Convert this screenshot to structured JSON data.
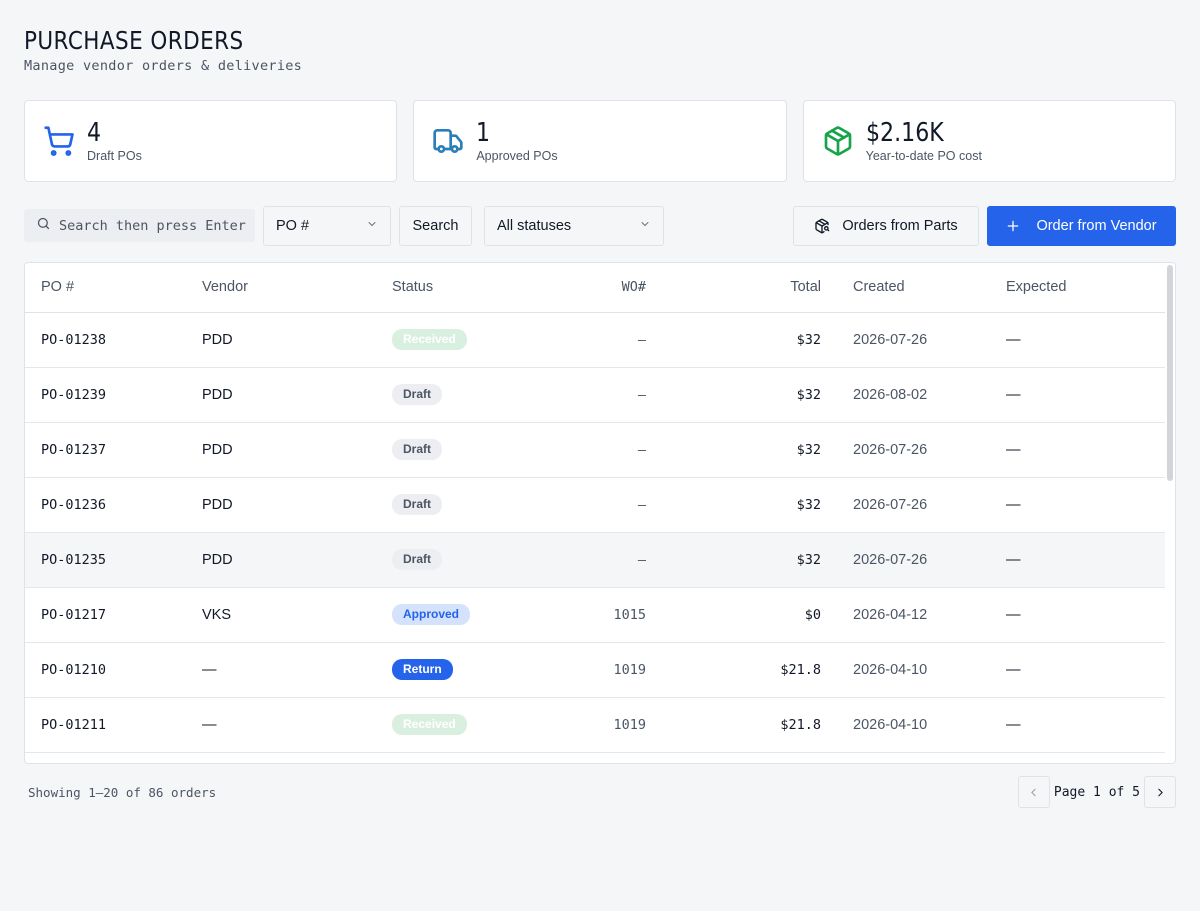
{
  "header": {
    "title": "PURCHASE ORDERS",
    "subtitle": "Manage vendor orders & deliveries"
  },
  "stats": [
    {
      "value": "4",
      "label": "Draft POs",
      "icon": "cart-icon",
      "color": "#2563eb"
    },
    {
      "value": "1",
      "label": "Approved POs",
      "icon": "truck-icon",
      "color": "#2b7fb8"
    },
    {
      "value": "$2.16K",
      "label": "Year-to-date PO cost",
      "icon": "box-icon",
      "color": "#16a34a"
    }
  ],
  "toolbar": {
    "search_placeholder": "Search then press Enter",
    "field_select": "PO #",
    "search_button": "Search",
    "status_select": "All statuses",
    "orders_from_parts": "Orders from Parts",
    "order_from_vendor": "Order from Vendor"
  },
  "table": {
    "columns": {
      "po": "PO #",
      "vendor": "Vendor",
      "status": "Status",
      "wo": "WO#",
      "total": "Total",
      "created": "Created",
      "expected": "Expected"
    },
    "rows": [
      {
        "po": "PO-01238",
        "vendor": "PDD",
        "status": "Received",
        "status_key": "received",
        "wo": "–",
        "total": "$32",
        "created": "2026-07-26",
        "expected": "—"
      },
      {
        "po": "PO-01239",
        "vendor": "PDD",
        "status": "Draft",
        "status_key": "draft",
        "wo": "–",
        "total": "$32",
        "created": "2026-08-02",
        "expected": "—"
      },
      {
        "po": "PO-01237",
        "vendor": "PDD",
        "status": "Draft",
        "status_key": "draft",
        "wo": "–",
        "total": "$32",
        "created": "2026-07-26",
        "expected": "—"
      },
      {
        "po": "PO-01236",
        "vendor": "PDD",
        "status": "Draft",
        "status_key": "draft",
        "wo": "–",
        "total": "$32",
        "created": "2026-07-26",
        "expected": "—"
      },
      {
        "po": "PO-01235",
        "vendor": "PDD",
        "status": "Draft",
        "status_key": "draft",
        "wo": "–",
        "total": "$32",
        "created": "2026-07-26",
        "expected": "—"
      },
      {
        "po": "PO-01217",
        "vendor": "VKS",
        "status": "Approved",
        "status_key": "approved",
        "wo": "1015",
        "total": "$0",
        "created": "2026-04-12",
        "expected": "—"
      },
      {
        "po": "PO-01210",
        "vendor": "—",
        "status": "Return",
        "status_key": "return",
        "wo": "1019",
        "total": "$21.8",
        "created": "2026-04-10",
        "expected": "—"
      },
      {
        "po": "PO-01211",
        "vendor": "—",
        "status": "Received",
        "status_key": "received",
        "wo": "1019",
        "total": "$21.8",
        "created": "2026-04-10",
        "expected": "—"
      }
    ]
  },
  "footer": {
    "showing": "Showing 1–20 of 86 orders",
    "page_label": "Page 1 of 5"
  }
}
